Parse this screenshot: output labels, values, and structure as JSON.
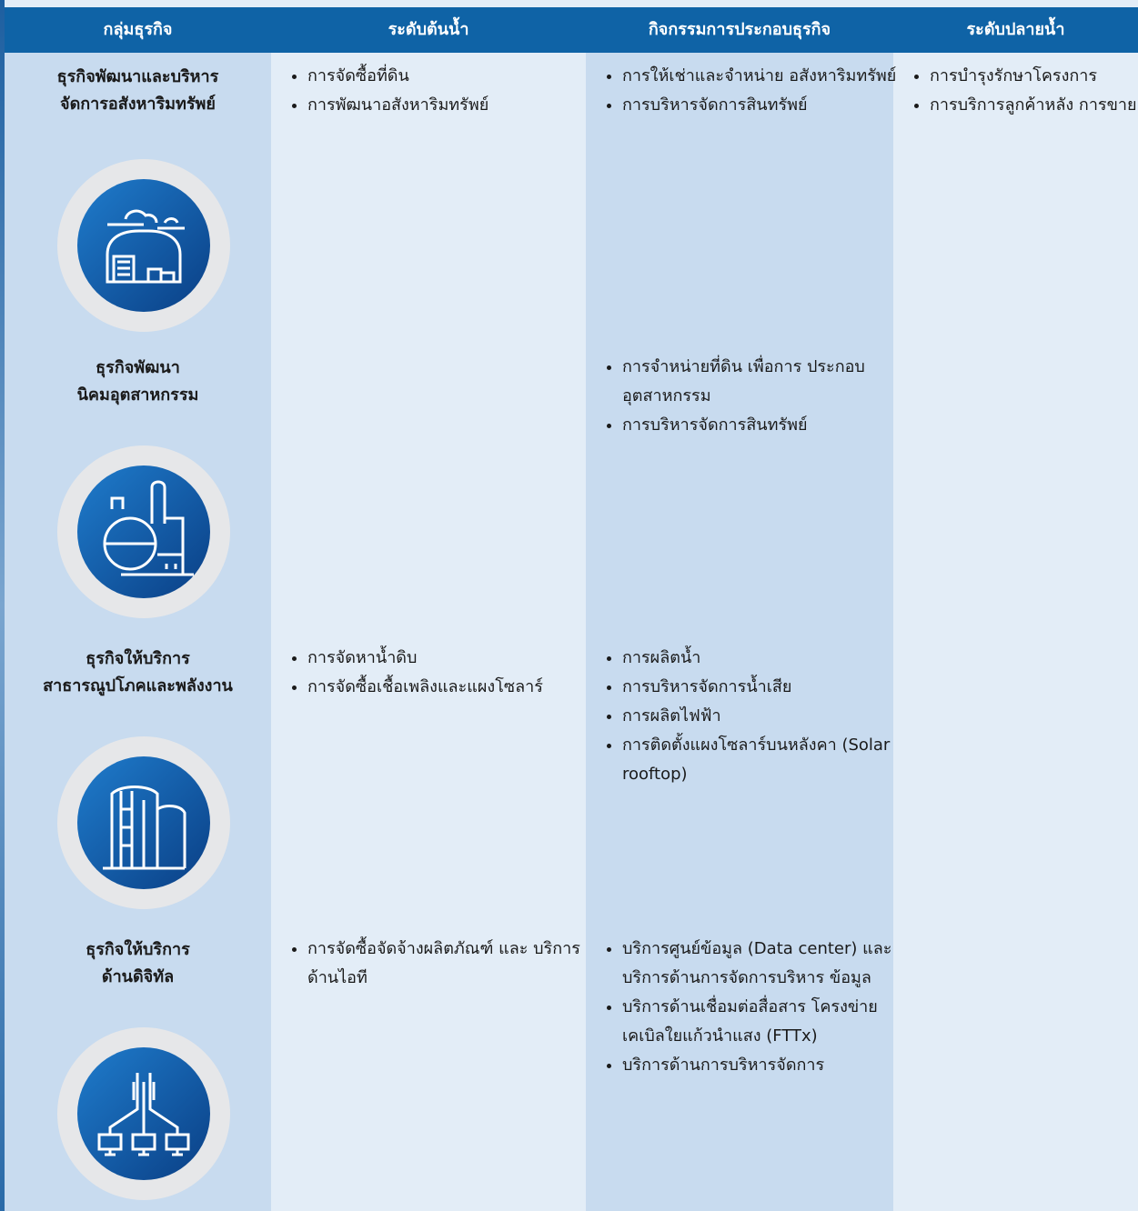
{
  "header": {
    "columns": [
      "กลุ่มธุรกิจ",
      "ระดับต้นน้ำ",
      "กิจกรรมการประกอบธุรกิจ",
      "ระดับปลายน้ำ"
    ]
  },
  "rows": [
    {
      "group": [
        "ธุรกิจพัฒนาและบริหาร",
        "จัดการอสังหาริมทรัพย์"
      ],
      "upstream": [
        "การจัดซื้อที่ดิน",
        "การพัฒนาอสังหาริมทรัพย์"
      ],
      "activities": [
        "การให้เช่าและจำหน่าย อสังหาริมทรัพย์",
        "การบริหารจัดการสินทรัพย์"
      ],
      "downstream": [
        "การบำรุงรักษาโครงการ",
        "การบริการลูกค้าหลัง การขาย"
      ]
    },
    {
      "group": [
        "ธุรกิจพัฒนา",
        "นิคมอุตสาหกรรม"
      ],
      "upstream": [],
      "activities": [
        "การจำหน่ายที่ดิน เพื่อการ ประกอบอุตสาหกรรม",
        "การบริหารจัดการสินทรัพย์"
      ],
      "downstream": []
    },
    {
      "group": [
        "ธุรกิจให้บริการ",
        "สาธารณูปโภคและพลังงาน"
      ],
      "upstream": [
        "การจัดหาน้ำดิบ",
        "การจัดซื้อเชื้อเพลิงและแผงโซลาร์"
      ],
      "activities": [
        "การผลิตน้ำ",
        "การบริหารจัดการน้ำเสีย",
        "การผลิตไฟฟ้า",
        "การติดตั้งแผงโซลาร์บนหลังคา (Solar rooftop)"
      ],
      "downstream": []
    },
    {
      "group": [
        "ธุรกิจให้บริการ",
        "ด้านดิจิทัล"
      ],
      "upstream": [
        "การจัดซื้อจัดจ้างผลิตภัณฑ์ และ บริการด้านไอที"
      ],
      "activities": [
        "บริการศูนย์ข้อมูล (Data center) และบริการด้านการจัดการบริหาร ข้อมูล",
        "บริการด้านเชื่อมต่อสื่อสาร โครงข่าย เคเบิลใยแก้วนำแสง (FTTx)",
        "บริการด้านการบริหารจัดการ"
      ],
      "downstream": []
    }
  ]
}
